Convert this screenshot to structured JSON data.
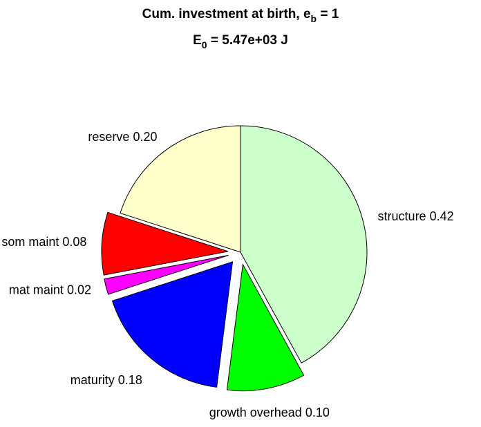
{
  "chart_data": {
    "type": "pie",
    "title": {
      "text": "Cum. investment at birth, e",
      "sub": "b",
      "tail": " = 1"
    },
    "subtitle": {
      "text": "E",
      "sub": "0",
      "tail": " = 5.47e+03 J"
    },
    "categories": [
      "structure",
      "growth overhead",
      "maturity",
      "mat maint",
      "som maint",
      "reserve"
    ],
    "values": [
      0.42,
      0.1,
      0.18,
      0.02,
      0.08,
      0.2
    ],
    "value_labels": [
      "0.42",
      "0.10",
      "0.18",
      "0.02",
      "0.08",
      "0.20"
    ],
    "colors": [
      "#ccffcc",
      "#00ff00",
      "#0000ff",
      "#ff00ff",
      "#ff0000",
      "#ffffcc"
    ],
    "explode": [
      false,
      true,
      true,
      true,
      true,
      false
    ]
  }
}
